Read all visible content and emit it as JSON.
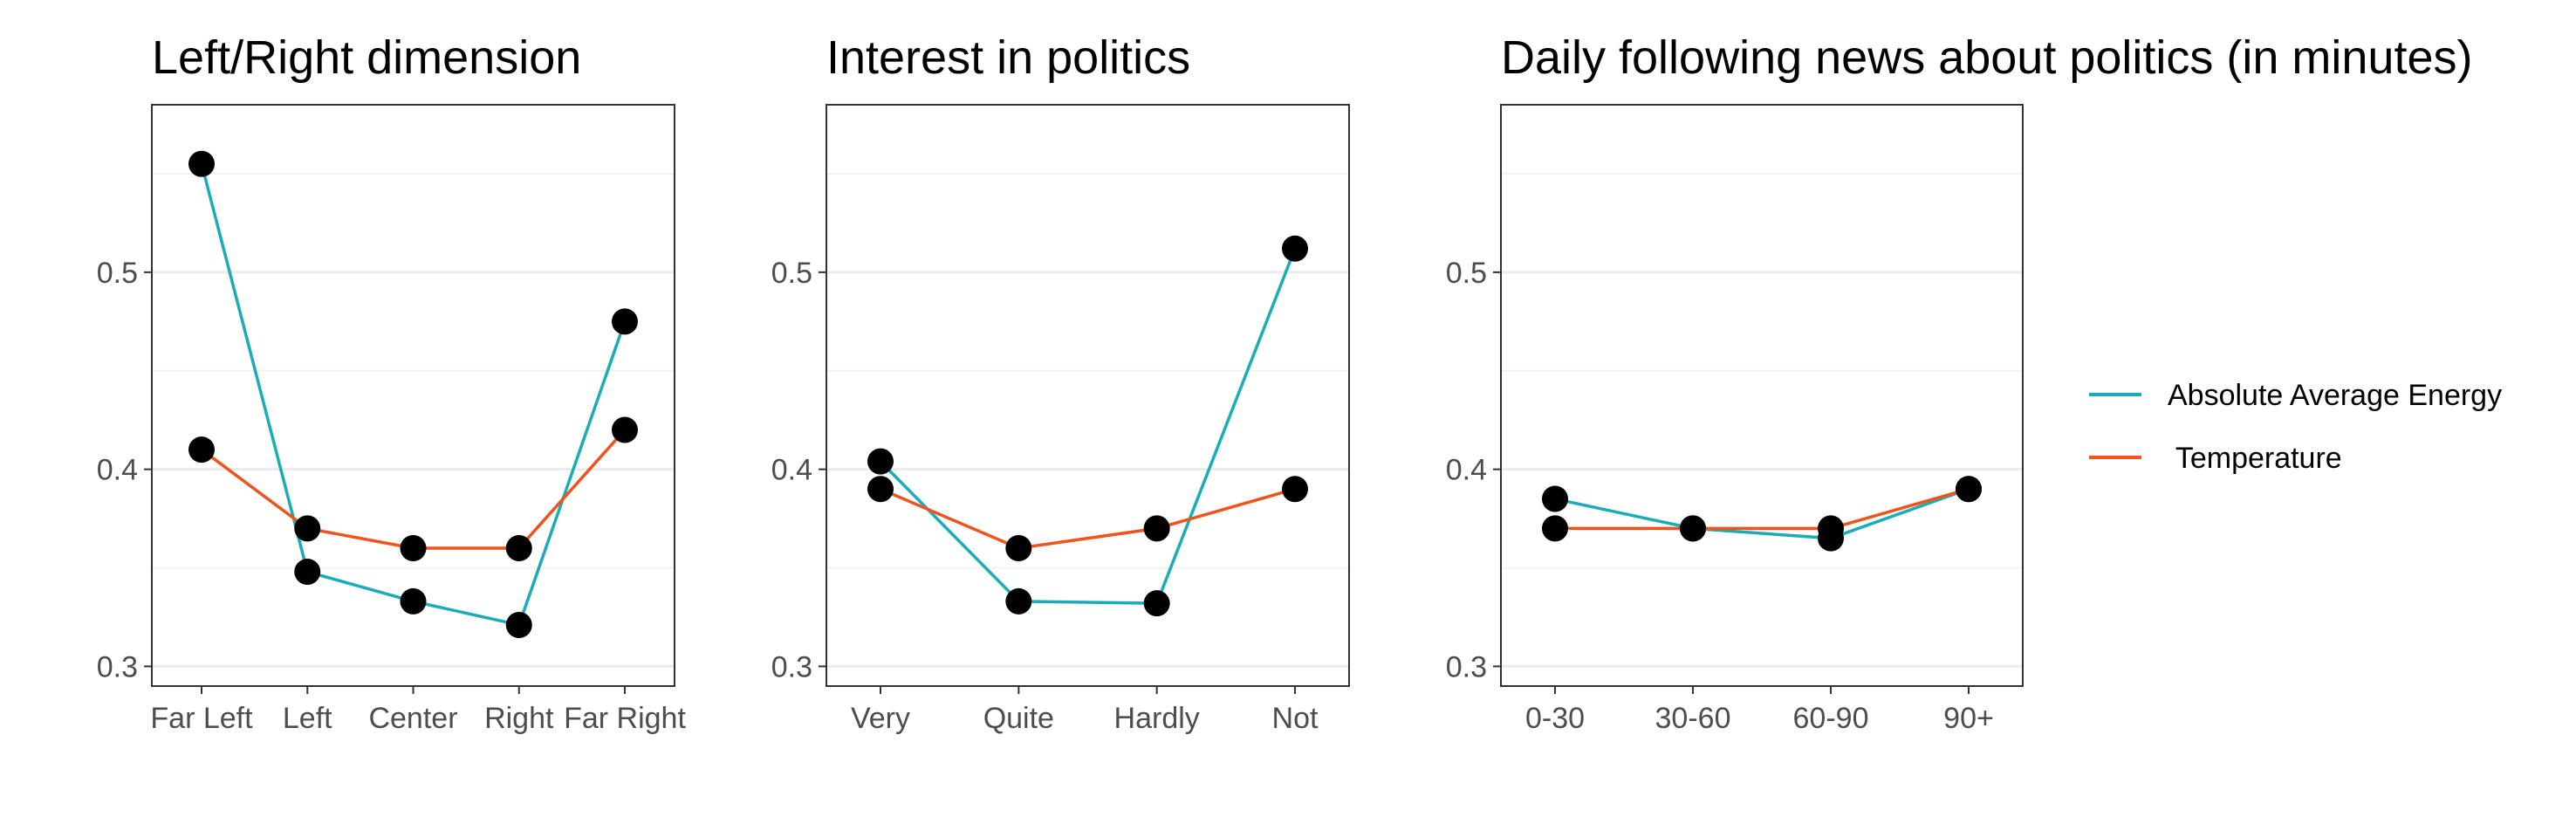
{
  "chart_data": [
    {
      "type": "line",
      "title": "Left/Right dimension",
      "categories": [
        "Far Left",
        "Left",
        "Center",
        "Right",
        "Far Right"
      ],
      "series": [
        {
          "name": "Absolute Average Energy",
          "color": "#1aadb8",
          "values": [
            0.555,
            0.348,
            0.333,
            0.321,
            0.475
          ]
        },
        {
          "name": " Temperature",
          "color": "#f0531c",
          "values": [
            0.41,
            0.37,
            0.36,
            0.36,
            0.42
          ]
        }
      ],
      "yticks": [
        0.3,
        0.4,
        0.5
      ],
      "ylim": [
        0.29,
        0.585
      ],
      "grid": true
    },
    {
      "type": "line",
      "title": "Interest in politics",
      "categories": [
        "Very",
        "Quite",
        "Hardly",
        "Not"
      ],
      "series": [
        {
          "name": "Absolute Average Energy",
          "color": "#1aadb8",
          "values": [
            0.404,
            0.333,
            0.332,
            0.512
          ]
        },
        {
          "name": " Temperature",
          "color": "#f0531c",
          "values": [
            0.39,
            0.36,
            0.37,
            0.39
          ]
        }
      ],
      "yticks": [
        0.3,
        0.4,
        0.5
      ],
      "ylim": [
        0.29,
        0.585
      ],
      "grid": true
    },
    {
      "type": "line",
      "title": "Daily following news about politics (in minutes)",
      "categories": [
        "0-30",
        "30-60",
        "60-90",
        "90+"
      ],
      "series": [
        {
          "name": "Absolute Average Energy",
          "color": "#1aadb8",
          "values": [
            0.385,
            0.37,
            0.365,
            0.39
          ]
        },
        {
          "name": " Temperature",
          "color": "#f0531c",
          "values": [
            0.37,
            0.37,
            0.37,
            0.39
          ]
        }
      ],
      "yticks": [
        0.3,
        0.4,
        0.5
      ],
      "ylim": [
        0.29,
        0.585
      ],
      "grid": true
    }
  ],
  "legend": {
    "placement": "right",
    "entries": [
      {
        "label": "Absolute Average Energy",
        "color": "#1aadb8"
      },
      {
        "label": " Temperature",
        "color": "#f0531c"
      }
    ]
  }
}
